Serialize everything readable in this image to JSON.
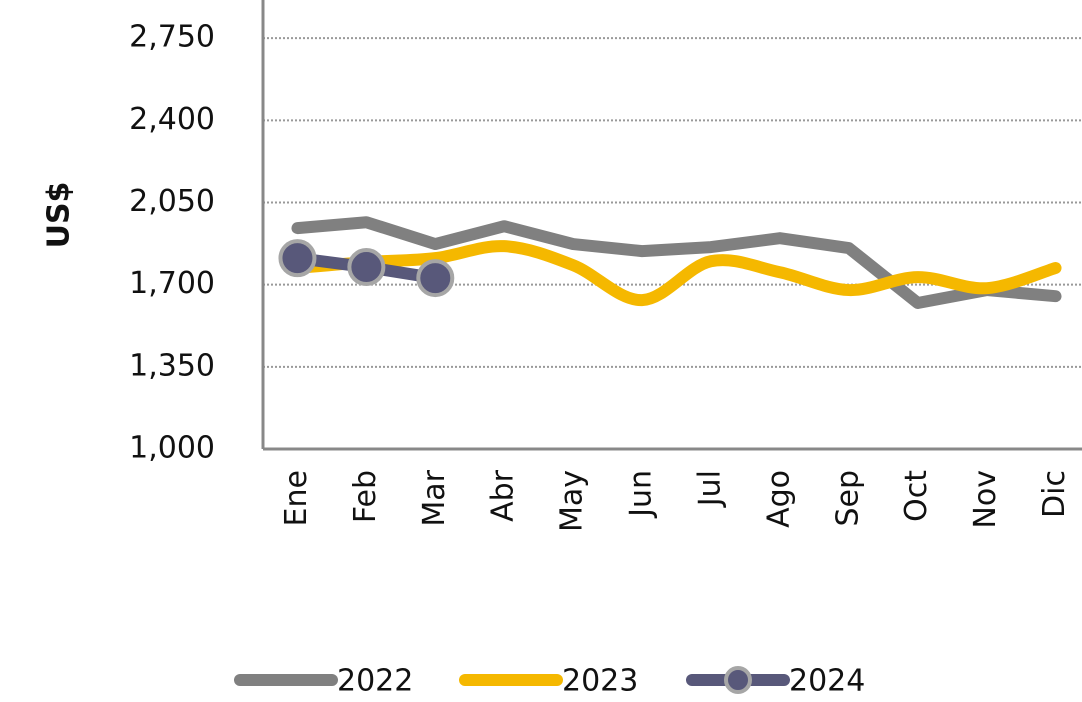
{
  "chart_data": {
    "type": "line",
    "y_label": "US$",
    "categories": [
      "Ene",
      "Feb",
      "Mar",
      "Abr",
      "May",
      "Jun",
      "Jul",
      "Ago",
      "Sep",
      "Oct",
      "Nov",
      "Dic"
    ],
    "series": [
      {
        "name": "2022",
        "color": "#808080",
        "smooth": false,
        "markers": false,
        "values": [
          1941,
          1966,
          1873,
          1949,
          1873,
          1843,
          1860,
          1898,
          1856,
          1622,
          1677,
          1651
        ]
      },
      {
        "name": "2023",
        "color": "#f5b800",
        "smooth": true,
        "markers": false,
        "values": [
          1771,
          1796,
          1813,
          1864,
          1783,
          1634,
          1800,
          1753,
          1677,
          1732,
          1685,
          1771
        ]
      },
      {
        "name": "2024",
        "color": "#58587a",
        "smooth": false,
        "markers": true,
        "values": [
          1813,
          1775,
          1728,
          null,
          null,
          null,
          null,
          null,
          null,
          null,
          null,
          null
        ]
      }
    ],
    "ylim": [
      1000,
      3100
    ],
    "yticks": [
      {
        "value": 1000,
        "label": "1,000"
      },
      {
        "value": 1350,
        "label": "1,350"
      },
      {
        "value": 1700,
        "label": "1,700"
      },
      {
        "value": 2050,
        "label": "2,050"
      },
      {
        "value": 2400,
        "label": "2,400"
      },
      {
        "value": 2750,
        "label": "2,750"
      }
    ],
    "grid": true,
    "legend": "bottom"
  }
}
